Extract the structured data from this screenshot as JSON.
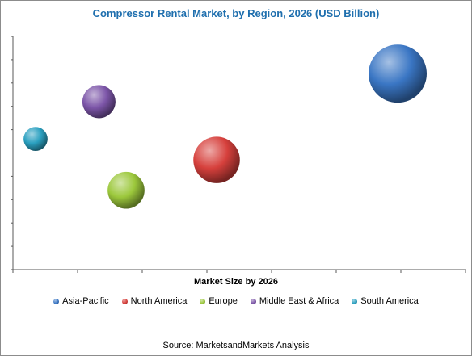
{
  "chart_data": {
    "type": "bubble",
    "title": "Compressor Rental Market, by Region, 2026 (USD Billion)",
    "xlabel": "Market Size by 2026",
    "ylabel": "",
    "axis_tick_labels_visible": false,
    "legend_position": "bottom",
    "series": [
      {
        "name": "Asia-Pacific",
        "color": "#3a76c4",
        "x": 0.85,
        "y": 0.84,
        "size": 1.0
      },
      {
        "name": "North America",
        "color": "#d6403c",
        "x": 0.45,
        "y": 0.47,
        "size": 0.55
      },
      {
        "name": "Europe",
        "color": "#9cc83c",
        "x": 0.25,
        "y": 0.34,
        "size": 0.28
      },
      {
        "name": "Middle East & Africa",
        "color": "#7c55a8",
        "x": 0.19,
        "y": 0.72,
        "size": 0.2
      },
      {
        "name": "South America",
        "color": "#2aa0c0",
        "x": 0.05,
        "y": 0.56,
        "size": 0.06
      }
    ]
  },
  "source": "Source: MarketsandMarkets Analysis"
}
